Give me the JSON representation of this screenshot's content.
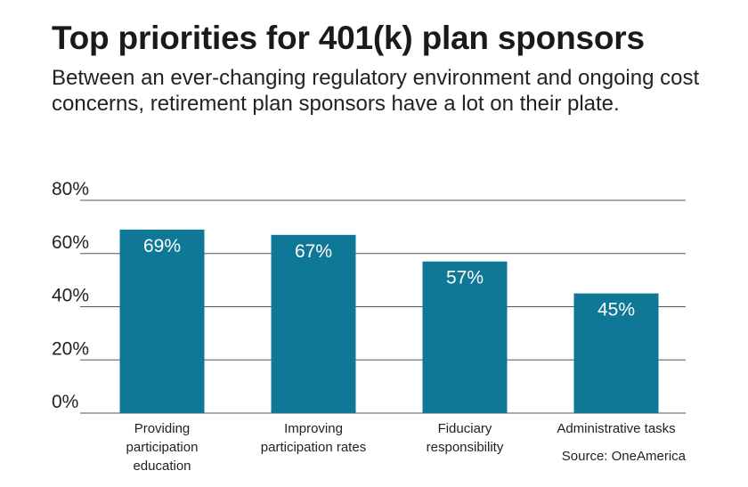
{
  "title": "Top priorities for 401(k) plan sponsors",
  "subtitle": "Between an ever-changing regulatory environment and ongoing cost concerns, retirement plan sponsors have a lot on their plate.",
  "source": "Source: OneAmerica",
  "colors": {
    "bar": "#0e7896",
    "grid": "#555555",
    "bar_label": "#ffffff"
  },
  "chart_data": {
    "type": "bar",
    "categories": [
      [
        "Providing",
        "participation",
        "education"
      ],
      [
        "Improving",
        "participation rates"
      ],
      [
        "Fiduciary",
        "responsibility"
      ],
      [
        "Administrative tasks"
      ]
    ],
    "values": [
      69,
      67,
      57,
      45
    ],
    "value_labels": [
      "69%",
      "67%",
      "57%",
      "45%"
    ],
    "y_ticks": [
      0,
      20,
      40,
      60,
      80
    ],
    "y_tick_labels": [
      "0%",
      "20%",
      "40%",
      "60%",
      "80%"
    ],
    "ylim": [
      0,
      80
    ],
    "grid": true
  }
}
